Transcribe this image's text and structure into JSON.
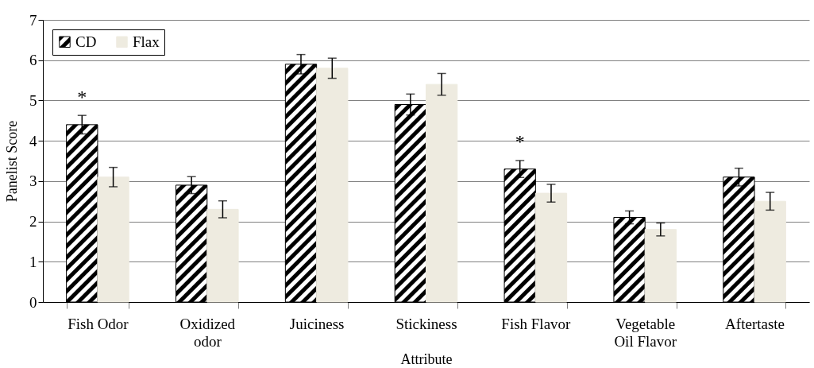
{
  "chart_data": {
    "type": "bar",
    "xlabel": "Attribute",
    "ylabel": "Panelist Score",
    "categories": [
      "Fish Odor",
      "Oxidized odor",
      "Juiciness",
      "Stickiness",
      "Fish Flavor",
      "Vegetable Oil Flavor",
      "Aftertaste"
    ],
    "series": [
      {
        "name": "CD",
        "color": "#000000",
        "values": [
          4.4,
          2.9,
          5.9,
          4.9,
          3.3,
          2.1,
          3.1
        ],
        "errors": [
          0.23,
          0.21,
          0.24,
          0.26,
          0.21,
          0.16,
          0.22
        ]
      },
      {
        "name": "Flax",
        "color": "#eeebe0",
        "values": [
          3.1,
          2.3,
          5.8,
          5.4,
          2.7,
          1.8,
          2.5
        ],
        "errors": [
          0.24,
          0.21,
          0.25,
          0.27,
          0.22,
          0.16,
          0.22
        ]
      }
    ],
    "ylim": [
      0,
      7
    ],
    "yticks": [
      0,
      1,
      2,
      3,
      4,
      5,
      6,
      7
    ],
    "grid": "y",
    "legend": "top left",
    "annotations": [
      {
        "text": "*",
        "x": "Fish Odor",
        "y": 4.4
      },
      {
        "text": "*",
        "x": "Fish Flavor",
        "y": 3.3
      }
    ]
  }
}
